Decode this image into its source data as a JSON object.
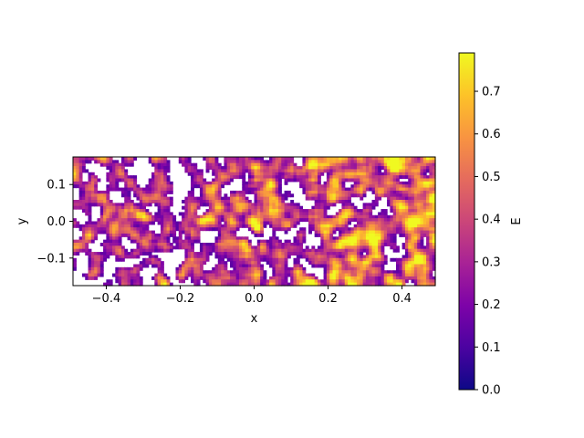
{
  "chart_data": {
    "type": "heatmap",
    "title": "",
    "xlabel": "x",
    "ylabel": "y",
    "xlim": [
      -0.49,
      0.49
    ],
    "ylim": [
      -0.175,
      0.175
    ],
    "xticks": [
      -0.4,
      -0.2,
      0.0,
      0.2,
      0.4
    ],
    "xtick_labels": [
      "−0.4",
      "−0.2",
      "0.0",
      "0.2",
      "0.4"
    ],
    "yticks": [
      -0.1,
      0.0,
      0.1
    ],
    "ytick_labels": [
      "−0.1",
      "0.0",
      "0.1"
    ],
    "colorbar": {
      "label": "E",
      "colormap": "plasma",
      "range": [
        0.0,
        0.79
      ],
      "ticks": [
        0.0,
        0.1,
        0.2,
        0.3,
        0.4,
        0.5,
        0.6,
        0.7
      ],
      "tick_labels": [
        "0.0",
        "0.1",
        "0.2",
        "0.3",
        "0.4",
        "0.5",
        "0.6",
        "0.7"
      ]
    },
    "field_description": "noisy scalar field E(x,y); cells below threshold are blank (white); values trend higher toward +x",
    "mask_threshold": 0.12
  }
}
